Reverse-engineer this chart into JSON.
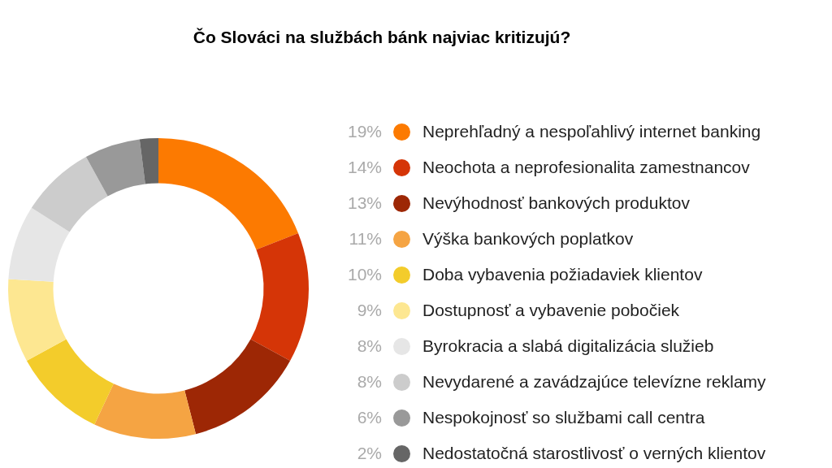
{
  "chart_data": {
    "type": "donut",
    "title": "Čo Slováci na službách bánk najviac kritizujú?",
    "categories": [
      "Neprehľadný a nespoľahlivý internet banking",
      "Neochota a neprofesionalita zamestnancov",
      "Nevýhodnosť bankových produktov",
      "Výška bankových poplatkov",
      "Doba vybavenia požiadaviek klientov",
      "Dostupnosť a vybavenie pobočiek",
      "Byrokracia a slabá digitalizácia služieb",
      "Nevydarené a zavádzajúce televízne reklamy",
      "Nespokojnosť so službami call centra",
      "Nedostatočná starostlivosť o verných klientov"
    ],
    "values": [
      19,
      14,
      13,
      11,
      10,
      9,
      8,
      8,
      6,
      2
    ],
    "colors": [
      "#fc7a01",
      "#d53507",
      "#9d2705",
      "#f5a443",
      "#f3cc2b",
      "#fde791",
      "#e6e6e6",
      "#cccccc",
      "#999999",
      "#666666"
    ],
    "value_labels": [
      "19%",
      "14%",
      "13%",
      "11%",
      "10%",
      "9%",
      "8%",
      "8%",
      "6%",
      "2%"
    ],
    "legend": "right"
  }
}
